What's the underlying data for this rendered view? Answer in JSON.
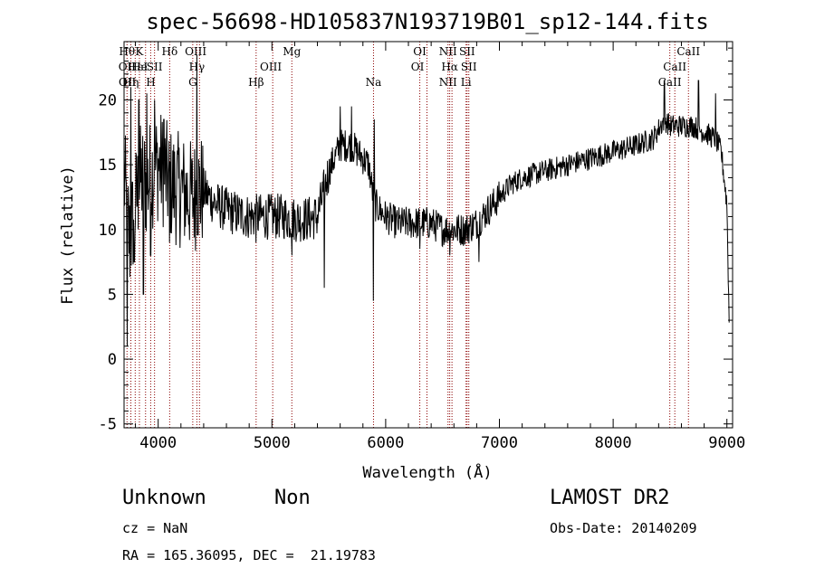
{
  "chart_data": {
    "type": "line",
    "title": "spec-56698-HD105837N193719B01_sp12-144.fits",
    "xlabel": "Wavelength (Å)",
    "ylabel": "Flux (relative)",
    "xlim": [
      3700,
      9050
    ],
    "ylim": [
      -5.3,
      24.5
    ],
    "xticks": [
      4000,
      5000,
      6000,
      7000,
      8000,
      9000
    ],
    "yticks": [
      -5,
      0,
      5,
      10,
      15,
      20
    ],
    "grid": false,
    "line_color": "#000000",
    "marker_color": "#8b0000",
    "spectrum_nodes": [
      [
        3700,
        14
      ],
      [
        3750,
        9
      ],
      [
        3800,
        12
      ],
      [
        3850,
        14
      ],
      [
        3900,
        13.5
      ],
      [
        3950,
        14.5
      ],
      [
        4000,
        15
      ],
      [
        4050,
        14.5
      ],
      [
        4100,
        13.5
      ],
      [
        4200,
        13
      ],
      [
        4300,
        12.5
      ],
      [
        4350,
        13
      ],
      [
        4400,
        13
      ],
      [
        4500,
        12
      ],
      [
        4600,
        11.5
      ],
      [
        4700,
        11.2
      ],
      [
        4800,
        11
      ],
      [
        4900,
        11
      ],
      [
        5000,
        11
      ],
      [
        5100,
        11
      ],
      [
        5200,
        10.8
      ],
      [
        5300,
        10.8
      ],
      [
        5400,
        11
      ],
      [
        5500,
        14.5
      ],
      [
        5600,
        16.5
      ],
      [
        5700,
        16.5
      ],
      [
        5800,
        15.5
      ],
      [
        5850,
        15
      ],
      [
        5900,
        12
      ],
      [
        6000,
        11
      ],
      [
        6100,
        10.5
      ],
      [
        6200,
        10.5
      ],
      [
        6300,
        10.5
      ],
      [
        6400,
        10.5
      ],
      [
        6500,
        10
      ],
      [
        6600,
        10
      ],
      [
        6700,
        10
      ],
      [
        6800,
        10.5
      ],
      [
        6900,
        11.5
      ],
      [
        7000,
        12.5
      ],
      [
        7100,
        13.5
      ],
      [
        7200,
        14
      ],
      [
        7400,
        14.5
      ],
      [
        7600,
        15
      ],
      [
        7800,
        15.5
      ],
      [
        8000,
        16
      ],
      [
        8200,
        16.5
      ],
      [
        8350,
        17
      ],
      [
        8450,
        18.5
      ],
      [
        8500,
        18
      ],
      [
        8600,
        18
      ],
      [
        8700,
        18
      ],
      [
        8800,
        17.5
      ],
      [
        8900,
        17
      ],
      [
        8950,
        16
      ],
      [
        9000,
        12
      ],
      [
        9020,
        3
      ]
    ],
    "spectrum_spikes": [
      [
        3728,
        1
      ],
      [
        3760,
        21
      ],
      [
        3790,
        7.5
      ],
      [
        3830,
        20
      ],
      [
        3870,
        5
      ],
      [
        3900,
        20.5
      ],
      [
        3934,
        8
      ],
      [
        3968,
        20
      ],
      [
        4050,
        18.5
      ],
      [
        4101,
        9
      ],
      [
        4340,
        23.5
      ],
      [
        4861,
        9
      ],
      [
        5175,
        8
      ],
      [
        5460,
        5.5
      ],
      [
        5600,
        19.5
      ],
      [
        5700,
        19.5
      ],
      [
        5893,
        4.5
      ],
      [
        5900,
        18.5
      ],
      [
        6300,
        8.5
      ],
      [
        6563,
        8
      ],
      [
        6820,
        7.5
      ],
      [
        8450,
        21.5
      ],
      [
        8750,
        21.5
      ],
      [
        8900,
        20.5
      ]
    ],
    "line_markers": [
      {
        "label": "Hθ",
        "x": 3726,
        "row": 0
      },
      {
        "label": "OII",
        "x": 3727,
        "row": 1
      },
      {
        "label": "OII",
        "x": 3729,
        "row": 2
      },
      {
        "label": "Hη",
        "x": 3760,
        "row": 2
      },
      {
        "label": "Hε",
        "x": 3800,
        "row": 1
      },
      {
        "label": "K",
        "x": 3834,
        "row": 0
      },
      {
        "label": "He",
        "x": 3835,
        "row": 1
      },
      {
        "label": "H",
        "x": 3935,
        "row": 2
      },
      {
        "label": "I",
        "x": 3890,
        "row": 1
      },
      {
        "label": "SII",
        "x": 3968,
        "row": 1
      },
      {
        "label": "Hδ",
        "x": 4101,
        "row": 0
      },
      {
        "label": "OIII",
        "x": 4330,
        "row": 0
      },
      {
        "label": "Hγ",
        "x": 4340,
        "row": 1
      },
      {
        "label": "G",
        "x": 4304,
        "row": 2
      },
      {
        "label": "Hβ",
        "x": 4861,
        "row": 2
      },
      {
        "label": "OIII",
        "x": 4990,
        "row": 1
      },
      {
        "label": "Mg",
        "x": 5175,
        "row": 0
      },
      {
        "label": "Na",
        "x": 5893,
        "row": 2
      },
      {
        "label": "OI",
        "x": 6300,
        "row": 0
      },
      {
        "label": "OI",
        "x": 6280,
        "row": 1
      },
      {
        "label": "NII",
        "x": 6548,
        "row": 0
      },
      {
        "label": "NII",
        "x": 6548,
        "row": 2
      },
      {
        "label": "Hα",
        "x": 6563,
        "row": 1
      },
      {
        "label": "SII",
        "x": 6716,
        "row": 0
      },
      {
        "label": "SII",
        "x": 6731,
        "row": 1
      },
      {
        "label": "Li",
        "x": 6707,
        "row": 2
      },
      {
        "label": "CaII",
        "x": 8662,
        "row": 0
      },
      {
        "label": "CaII",
        "x": 8542,
        "row": 1
      },
      {
        "label": "CaII",
        "x": 8498,
        "row": 2
      }
    ],
    "marker_positions": [
      3726,
      3760,
      3798,
      3835,
      3889,
      3934,
      3968,
      4101,
      4304,
      4340,
      4363,
      4861,
      5007,
      5175,
      5893,
      6300,
      6363,
      6548,
      6563,
      6583,
      6707,
      6716,
      6731,
      8498,
      8542,
      8662
    ]
  },
  "info": {
    "object_class": "Unknown",
    "subclass": "Non",
    "survey": "LAMOST DR2",
    "cz": "cz = NaN",
    "obs_date": "Obs-Date: 20140209",
    "coords": "RA = 165.36095, DEC =  21.19783"
  }
}
